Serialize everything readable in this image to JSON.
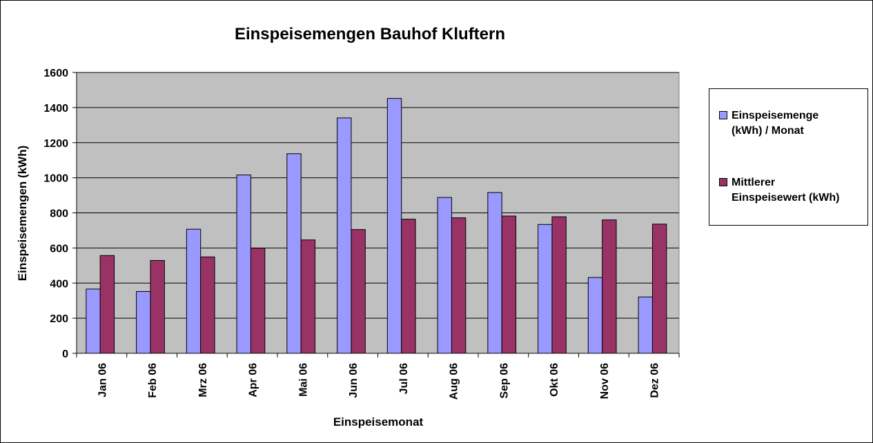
{
  "chart_data": {
    "type": "bar",
    "title": "Einspeisemengen Bauhof Kluftern",
    "xlabel": "Einspeisemonat",
    "ylabel": "Einspeisemengen (kWh)",
    "categories": [
      "Jan 06",
      "Feb 06",
      "Mrz 06",
      "Apr 06",
      "Mai 06",
      "Jun 06",
      "Jul 06",
      "Aug 06",
      "Sep 06",
      "Okt 06",
      "Nov 06",
      "Dez 06"
    ],
    "ylim": [
      0,
      1600
    ],
    "yticks": [
      "0",
      "200",
      "400",
      "600",
      "800",
      "1000",
      "1200",
      "1400",
      "1600"
    ],
    "grid": true,
    "legend_position": "right",
    "plot_background": "#C0C0C0",
    "series": [
      {
        "name": "Einspeisemenge (kWh) / Monat",
        "legend_lines": [
          "Einspeisemenge",
          "(kWh) / Monat"
        ],
        "color": "#9999FF",
        "values": [
          366,
          352,
          707,
          1016,
          1137,
          1341,
          1452,
          888,
          916,
          734,
          432,
          321
        ]
      },
      {
        "name": "Mittlerer Einspeisewert (kWh)",
        "legend_lines": [
          "Mittlerer",
          "Einspeisewert (kWh)"
        ],
        "color": "#993366",
        "values": [
          557,
          529,
          549,
          599,
          646,
          705,
          764,
          772,
          782,
          778,
          760,
          736
        ]
      }
    ]
  }
}
